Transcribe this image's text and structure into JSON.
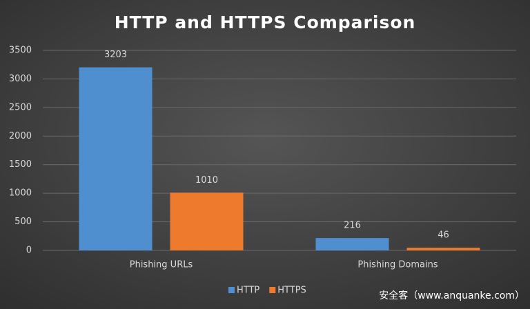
{
  "chart_data": {
    "type": "bar",
    "title": "HTTP and HTTPS Comparison",
    "categories": [
      "Phishing URLs",
      "Phishing Domains"
    ],
    "series": [
      {
        "name": "HTTP",
        "color": "#4f8fd0",
        "values": [
          3203,
          216
        ]
      },
      {
        "name": "HTTPS",
        "color": "#ee7b2d",
        "values": [
          1010,
          46
        ]
      }
    ],
    "ylim": [
      0,
      3500
    ],
    "yticks": [
      0,
      500,
      1000,
      1500,
      2000,
      2500,
      3000,
      3500
    ],
    "grid": true,
    "legend": "bottom",
    "watermark": "安全客（www.anquanke.com）"
  }
}
